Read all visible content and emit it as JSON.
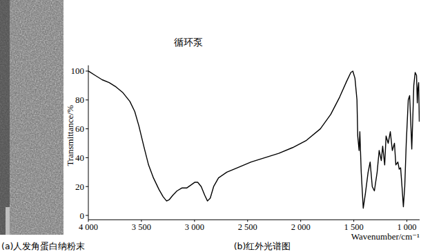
{
  "panel_a": {
    "caption": "(a)人发角蛋白纳粉末"
  },
  "chart_data": {
    "type": "line",
    "title": "(b)红外光谱图",
    "x_label": "Wavenumber/cm⁻¹",
    "y_label": "Transmittance/%",
    "annotations": [
      "循环泵"
    ],
    "color": "#000000",
    "grid": false,
    "xlim": [
      4000,
      880
    ],
    "xticks": [
      {
        "value": 4000,
        "label": "4 000"
      },
      {
        "value": 3500,
        "label": "3 500"
      },
      {
        "value": 3000,
        "label": "3 000"
      },
      {
        "value": 2500,
        "label": "2 500"
      },
      {
        "value": 2000,
        "label": "2 000"
      },
      {
        "value": 1500,
        "label": "1 500"
      },
      {
        "value": 1000,
        "label": "1 000"
      }
    ],
    "ylim": [
      -3,
      104
    ],
    "yticks": [
      0,
      20,
      40,
      60,
      80,
      100
    ],
    "x": [
      4000,
      3935,
      3870,
      3804,
      3739,
      3674,
      3609,
      3563,
      3524,
      3478,
      3433,
      3387,
      3335,
      3296,
      3263,
      3237,
      3204,
      3165,
      3120,
      3074,
      3035,
      2996,
      2970,
      2937,
      2904,
      2878,
      2852,
      2820,
      2774,
      2696,
      2598,
      2467,
      2337,
      2207,
      2076,
      1946,
      1815,
      1717,
      1633,
      1567,
      1528,
      1509,
      1489,
      1470,
      1463,
      1450,
      1443,
      1430,
      1411,
      1391,
      1365,
      1346,
      1326,
      1306,
      1280,
      1261,
      1241,
      1228,
      1209,
      1196,
      1176,
      1156,
      1137,
      1117,
      1104,
      1085,
      1072,
      1059,
      1046,
      1033,
      1020,
      1006,
      987,
      974,
      961,
      954,
      941,
      935,
      922,
      909,
      902,
      896,
      889,
      883
    ],
    "values": [
      100,
      97,
      94,
      92,
      89,
      85,
      79,
      72,
      62,
      48,
      35,
      26,
      18,
      13,
      10,
      11,
      14,
      17,
      19,
      19,
      21,
      23,
      23,
      20,
      14,
      10,
      12,
      20,
      26,
      30,
      33,
      37,
      40,
      43,
      47,
      52,
      60,
      70,
      82,
      93,
      99,
      100,
      95,
      80,
      55,
      45,
      58,
      30,
      5,
      15,
      30,
      37,
      20,
      17,
      30,
      45,
      38,
      48,
      35,
      55,
      50,
      58,
      45,
      50,
      35,
      37,
      32,
      33,
      20,
      6,
      20,
      50,
      80,
      83,
      60,
      46,
      75,
      90,
      99,
      97,
      78,
      88,
      92,
      65
    ]
  }
}
